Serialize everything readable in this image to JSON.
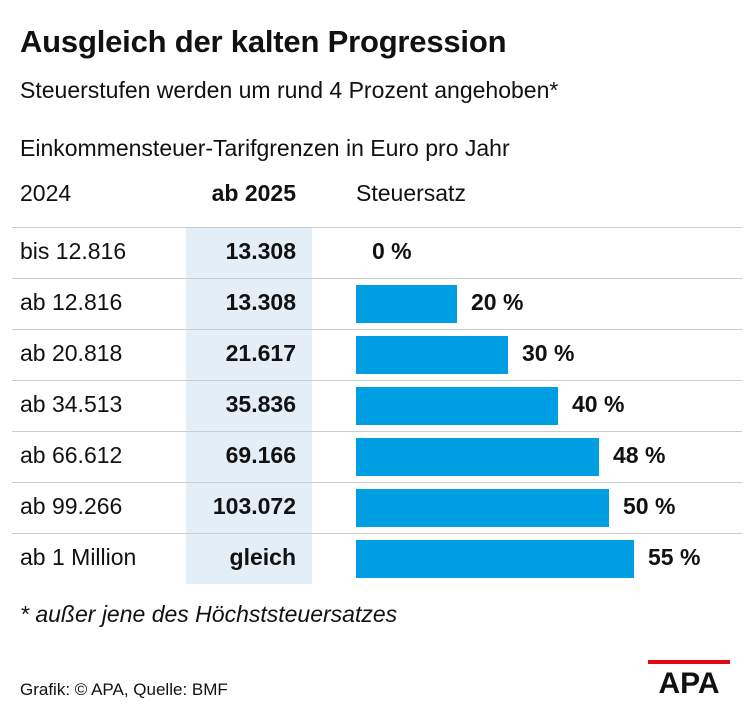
{
  "title": "Ausgleich der kalten Progression",
  "subtitle": "Steuerstufen werden um rund 4 Prozent angehoben*",
  "caption": "Einkommensteuer-Tarifgrenzen in Euro pro Jahr",
  "headers": {
    "col2024": "2024",
    "col2025": "ab 2025",
    "rate": "Steuersatz"
  },
  "footnote": "* außer jene des Höchststeuersatzes",
  "source": "Grafik: © APA, Quelle: BMF",
  "logo_text": "APA",
  "colors": {
    "bar": "#009fe3",
    "highlight": "#e3eef7",
    "text": "#111111"
  },
  "chart_data": {
    "type": "bar",
    "title": "Ausgleich der kalten Progression",
    "xlabel": "",
    "ylabel": "Steuersatz",
    "categories": [
      "bis 12.816",
      "ab 12.816",
      "ab 20.818",
      "ab 34.513",
      "ab 66.612",
      "ab 99.266",
      "ab 1 Million"
    ],
    "limits_2025": [
      "13.308",
      "13.308",
      "21.617",
      "35.836",
      "69.166",
      "103.072",
      "gleich"
    ],
    "values": [
      0,
      20,
      30,
      40,
      48,
      50,
      55
    ],
    "labels": [
      "0 %",
      "20 %",
      "30 %",
      "40 %",
      "48 %",
      "50 %",
      "55 %"
    ],
    "unit": "%",
    "xlim": [
      0,
      55
    ]
  }
}
